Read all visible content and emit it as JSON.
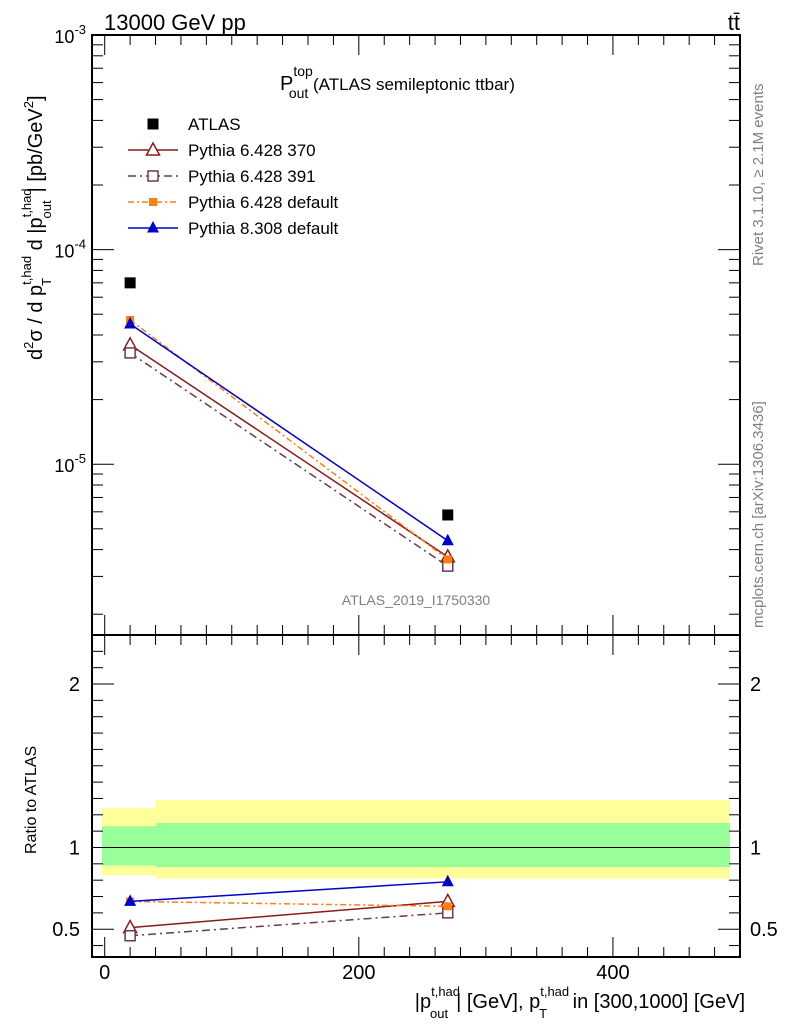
{
  "header": {
    "left": "13000 GeV pp",
    "right": "tt̄"
  },
  "side_labels": {
    "rivet": "Rivet 3.1.10, ≥ 2.1M events",
    "mcplots": "mcplots.cern.ch [arXiv:1306.3436]"
  },
  "colors": {
    "atlas": "#000000",
    "p6_370": "#8b1a1a",
    "p6_391": "#6b3a4a",
    "p6_default": "#ff7f0e",
    "p8_default": "#0000cc",
    "band_inner": "#99ff99",
    "band_outer": "#ffff99"
  },
  "chart_data": [
    {
      "panel": "main",
      "type": "scatter",
      "title": "P_out^top (ATLAS semileptonic ttbar)",
      "title_main": "P",
      "title_sup": "top",
      "title_sub": "out",
      "title_rest": " (ATLAS semileptonic ttbar)",
      "ylabel": "d²σ / d p_T^{t,had} d |p_out^{t,had}| [pb/GeV²]",
      "ylog": true,
      "ylim": [
        1.6e-06,
        0.001
      ],
      "xlim": [
        -10,
        500
      ],
      "y_ticks": [
        {
          "value": 0.001,
          "base": "10",
          "exp": "-3"
        },
        {
          "value": 0.0001,
          "base": "10",
          "exp": "-4"
        },
        {
          "value": 1e-05,
          "base": "10",
          "exp": "-5"
        }
      ],
      "watermark": "ATLAS_2019_I1750330",
      "legend_position": "top-left",
      "series": [
        {
          "name": "ATLAS",
          "key": "atlas",
          "marker": "filled-square",
          "line": "none",
          "x": [
            20,
            270
          ],
          "y": [
            7e-05,
            5.8e-06
          ]
        },
        {
          "name": "Pythia 6.428 370",
          "key": "p6_370",
          "marker": "open-triangle",
          "line": "solid",
          "x": [
            20,
            270
          ],
          "y": [
            3.6e-05,
            3.7e-06
          ]
        },
        {
          "name": "Pythia 6.428 391",
          "key": "p6_391",
          "marker": "open-square",
          "line": "dashdot",
          "x": [
            20,
            270
          ],
          "y": [
            3.3e-05,
            3.35e-06
          ]
        },
        {
          "name": "Pythia 6.428 default",
          "key": "p6_default",
          "marker": "filled-square-small",
          "line": "dashdot-light",
          "x": [
            20,
            270
          ],
          "y": [
            4.7e-05,
            3.6e-06
          ]
        },
        {
          "name": "Pythia 8.308 default",
          "key": "p8_default",
          "marker": "filled-triangle",
          "line": "solid",
          "x": [
            20,
            270
          ],
          "y": [
            4.5e-05,
            4.4e-06
          ]
        }
      ]
    },
    {
      "panel": "ratio",
      "type": "line",
      "ylabel": "Ratio to ATLAS",
      "ylim": [
        0.33,
        2.3
      ],
      "xlim": [
        -10,
        500
      ],
      "y_ticks": [
        {
          "value": 2,
          "label": "2"
        },
        {
          "value": 1,
          "label": "1"
        },
        {
          "value": 0.5,
          "label": "0.5"
        }
      ],
      "x_ticks": [
        {
          "value": 0,
          "label": "0"
        },
        {
          "value": 200,
          "label": "200"
        },
        {
          "value": 400,
          "label": "400"
        }
      ],
      "xlabel": "|p_out^{t,had}| [GeV], p_T^{t,had} in [300,1000] [GeV]",
      "bands": [
        {
          "x0": -10,
          "x1": 40,
          "inner": [
            0.89,
            1.13
          ],
          "outer": [
            0.83,
            1.24
          ]
        },
        {
          "x0": 40,
          "x1": 500,
          "inner": [
            0.88,
            1.15
          ],
          "outer": [
            0.81,
            1.29
          ]
        }
      ],
      "series": [
        {
          "name": "Pythia 6.428 370",
          "key": "p6_370",
          "x": [
            20,
            270
          ],
          "y": [
            0.51,
            0.67
          ]
        },
        {
          "name": "Pythia 6.428 391",
          "key": "p6_391",
          "x": [
            20,
            270
          ],
          "y": [
            0.46,
            0.6
          ]
        },
        {
          "name": "Pythia 6.428 default",
          "key": "p6_default",
          "x": [
            20,
            270
          ],
          "y": [
            0.67,
            0.64
          ]
        },
        {
          "name": "Pythia 8.308 default",
          "key": "p8_default",
          "x": [
            20,
            270
          ],
          "y": [
            0.67,
            0.79
          ]
        }
      ]
    }
  ]
}
